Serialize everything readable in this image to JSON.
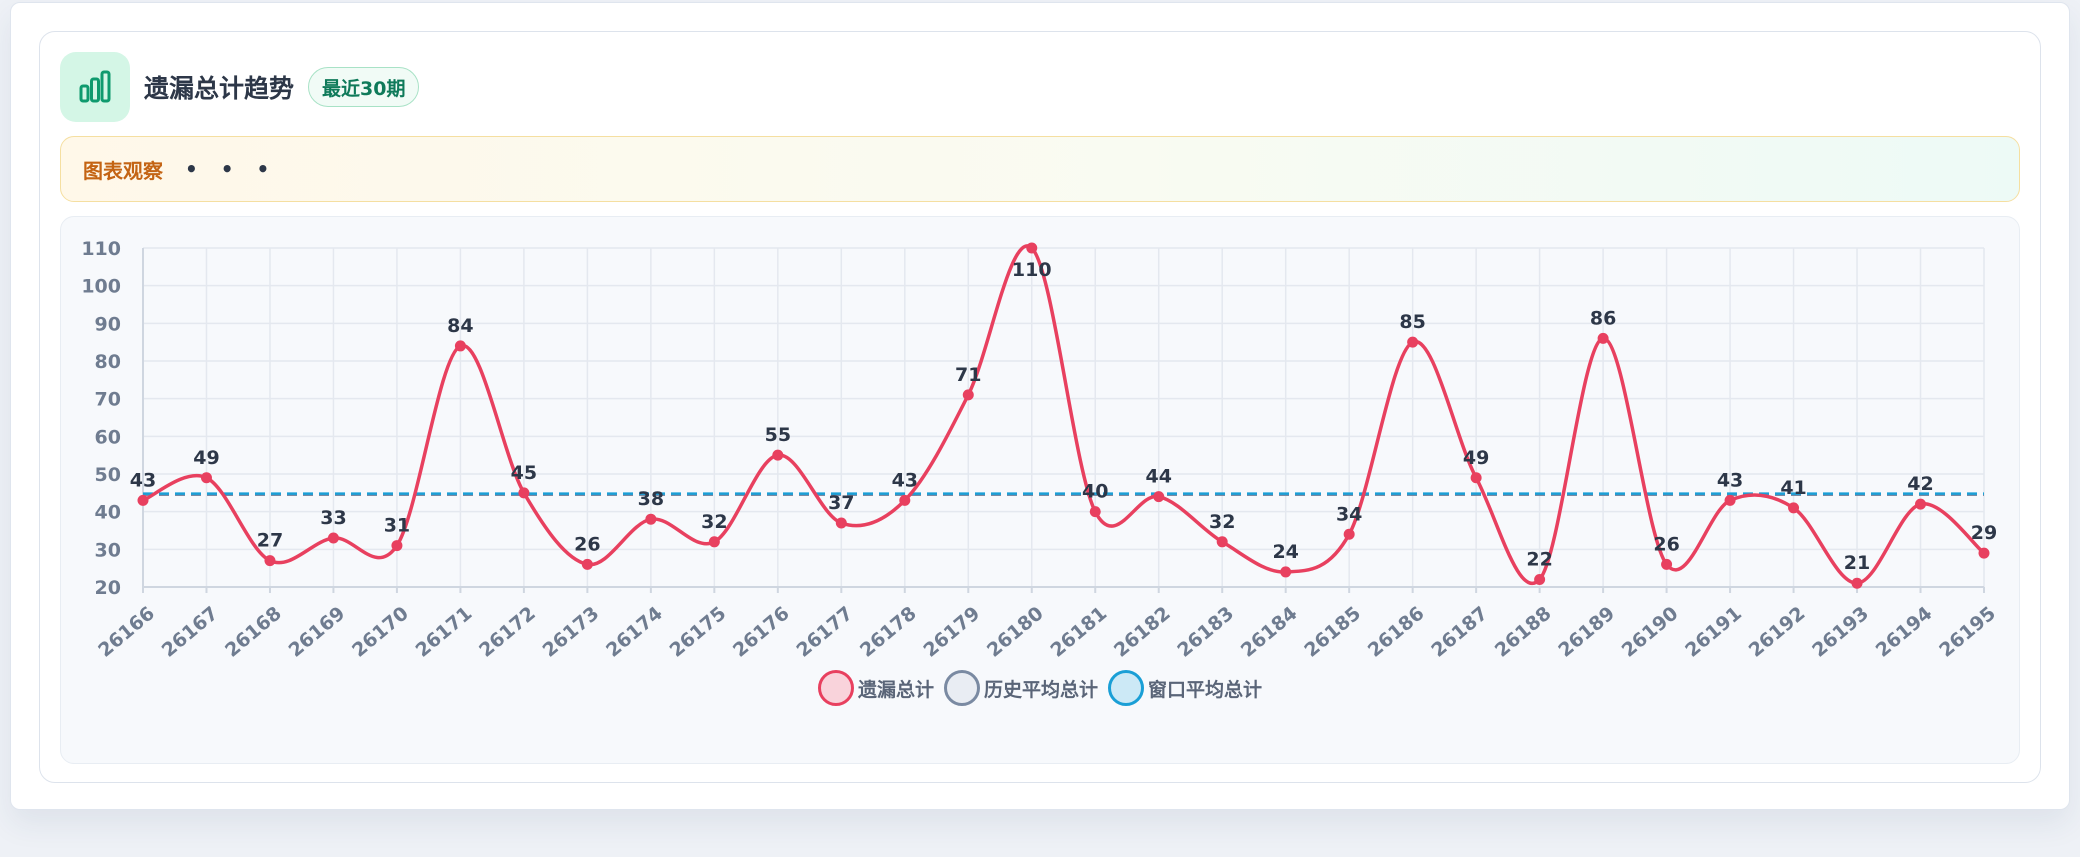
{
  "header": {
    "title": "遗漏总计趋势",
    "badge": "最近30期",
    "icon": "bar-chart-icon"
  },
  "insight": {
    "label": "图表观察",
    "more_label": "• • •"
  },
  "colors": {
    "main_series": "#e8405f",
    "history_avg": "#7a8aa2",
    "window_avg": "#1a9fd6",
    "accent": "#0f7a5a"
  },
  "legend": [
    {
      "label": "遗漏总计",
      "key": "main"
    },
    {
      "label": "历史平均总计",
      "key": "history"
    },
    {
      "label": "窗口平均总计",
      "key": "window"
    }
  ],
  "chart_data": {
    "type": "line",
    "x": [
      "26166",
      "26167",
      "26168",
      "26169",
      "26170",
      "26171",
      "26172",
      "26173",
      "26174",
      "26175",
      "26176",
      "26177",
      "26178",
      "26179",
      "26180",
      "26181",
      "26182",
      "26183",
      "26184",
      "26185",
      "26186",
      "26187",
      "26188",
      "26189",
      "26190",
      "26191",
      "26192",
      "26193",
      "26194",
      "26195"
    ],
    "series": [
      {
        "name": "遗漏总计",
        "values": [
          43,
          49,
          27,
          33,
          31,
          84,
          45,
          26,
          38,
          32,
          55,
          37,
          43,
          71,
          110,
          40,
          44,
          32,
          24,
          34,
          85,
          49,
          22,
          86,
          26,
          43,
          41,
          21,
          42,
          29
        ]
      },
      {
        "name": "历史平均总计",
        "values": [
          44.5,
          44.5,
          44.5,
          44.5,
          44.5,
          44.5,
          44.5,
          44.5,
          44.5,
          44.5,
          44.5,
          44.5,
          44.5,
          44.5,
          44.5,
          44.5,
          44.5,
          44.5,
          44.5,
          44.5,
          44.5,
          44.5,
          44.5,
          44.5,
          44.5,
          44.5,
          44.5,
          44.5,
          44.5,
          44.5
        ]
      },
      {
        "name": "窗口平均总计",
        "values": [
          44.8,
          44.8,
          44.8,
          44.8,
          44.8,
          44.8,
          44.8,
          44.8,
          44.8,
          44.8,
          44.8,
          44.8,
          44.8,
          44.8,
          44.8,
          44.8,
          44.8,
          44.8,
          44.8,
          44.8,
          44.8,
          44.8,
          44.8,
          44.8,
          44.8,
          44.8,
          44.8,
          44.8,
          44.8,
          44.8
        ]
      }
    ],
    "yticks": [
      "20",
      "30",
      "40",
      "50",
      "60",
      "70",
      "80",
      "90",
      "100",
      "110"
    ],
    "ylim": [
      20,
      110
    ],
    "grid": true,
    "legend_position": "bottom-center"
  }
}
